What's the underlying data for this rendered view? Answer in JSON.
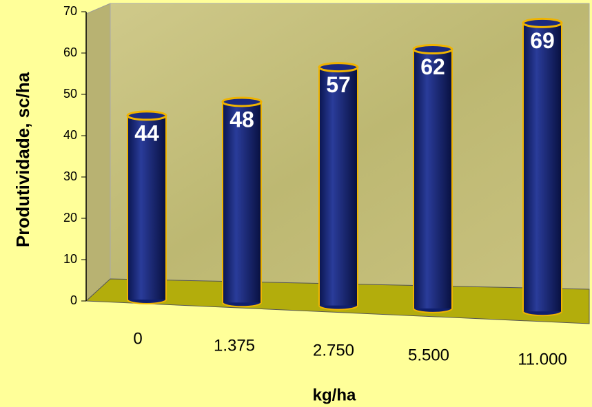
{
  "chart_data": {
    "type": "bar",
    "ylabel": "Produtividade, sc/ha",
    "xlabel": "kg/ha",
    "categories": [
      "0",
      "1.375",
      "2.750",
      "5.500",
      "11.000"
    ],
    "values": [
      44,
      48,
      57,
      62,
      69
    ],
    "color": "#0f1f6e",
    "ylim": [
      0,
      70
    ],
    "yticks": [
      0,
      10,
      20,
      30,
      40,
      50,
      60,
      70
    ]
  }
}
